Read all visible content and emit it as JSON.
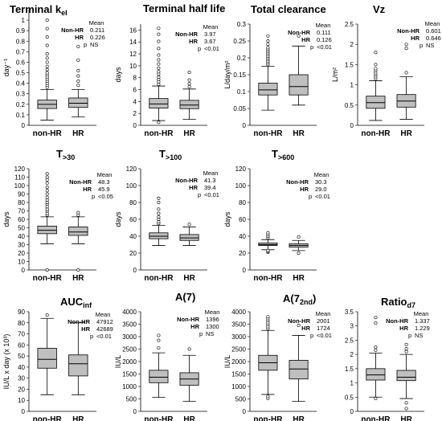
{
  "chart_data": [
    {
      "id": "p1",
      "type": "box",
      "title": "Terminal k",
      "title_sub": "el",
      "ylabel": "day⁻¹",
      "ylim": [
        0,
        1.1
      ],
      "yticks": [
        "0",
        "0.1",
        "0.2",
        "0.3",
        "0.4",
        "0.5",
        "0.6",
        "0.7",
        "0.8",
        "0.9",
        "1"
      ],
      "yvals": [
        0,
        0.1,
        0.2,
        0.3,
        0.4,
        0.5,
        0.6,
        0.7,
        0.8,
        0.9,
        1
      ],
      "categories": [
        "non-HR",
        "HR"
      ],
      "boxes": [
        {
          "min": 0.05,
          "q1": 0.16,
          "median": 0.2,
          "q3": 0.24,
          "max": 0.34,
          "outliers": [
            0.36,
            0.38,
            0.4,
            0.42,
            0.44,
            0.46,
            0.48,
            0.5,
            0.53,
            0.56,
            0.6,
            0.64,
            0.68,
            0.76,
            0.84,
            0.92,
            1.0
          ]
        },
        {
          "min": 0.08,
          "q1": 0.17,
          "median": 0.21,
          "q3": 0.26,
          "max": 0.34,
          "outliers": [
            0.38,
            0.42,
            0.47,
            0.52,
            0.62,
            0.75
          ]
        }
      ],
      "stats": {
        "header": "Mean",
        "rows": [
          {
            "label": "Non-HR",
            "value": "0.211"
          },
          {
            "label": "HR",
            "value": "0.226"
          },
          {
            "label": "p",
            "value": "NS"
          }
        ]
      }
    },
    {
      "id": "p2",
      "type": "box",
      "title": "Terminal half life",
      "title_sub": "",
      "ylabel": "days",
      "ylim": [
        0,
        17
      ],
      "yticks": [
        "0",
        "2",
        "4",
        "6",
        "8",
        "10",
        "12",
        "14",
        "16"
      ],
      "yvals": [
        0,
        2,
        4,
        6,
        8,
        10,
        12,
        14,
        16
      ],
      "categories": [
        "non-HR",
        "HR"
      ],
      "boxes": [
        {
          "min": 0.8,
          "q1": 2.9,
          "median": 3.6,
          "q3": 4.5,
          "max": 6.6,
          "outliers": [
            0.5,
            6.9,
            7.3,
            7.7,
            8.1,
            8.6,
            9.0,
            9.6,
            10.3,
            11.0,
            11.8,
            12.9,
            14.1,
            15.3,
            16.3
          ]
        },
        {
          "min": 1.0,
          "q1": 2.8,
          "median": 3.4,
          "q3": 4.2,
          "max": 6.1,
          "outliers": [
            6.5,
            7.0,
            7.6,
            8.9
          ]
        }
      ],
      "stats": {
        "header": "Mean",
        "rows": [
          {
            "label": "Non-HR",
            "value": "3.97"
          },
          {
            "label": "HR",
            "value": "3.67"
          },
          {
            "label": "p",
            "value": "<0.01"
          }
        ]
      }
    },
    {
      "id": "p3",
      "type": "box",
      "title": "Total clearance",
      "title_sub": "",
      "ylabel": "L/day/m²",
      "ylim": [
        0,
        0.3
      ],
      "yticks": [
        "0",
        "0.05",
        "0.1",
        "0.15",
        "0.2",
        "0.25",
        "0.3"
      ],
      "yvals": [
        0,
        0.05,
        0.1,
        0.15,
        0.2,
        0.25,
        0.3
      ],
      "categories": [
        "non-HR",
        "HR"
      ],
      "boxes": [
        {
          "min": 0.045,
          "q1": 0.09,
          "median": 0.105,
          "q3": 0.125,
          "max": 0.175,
          "outliers": [
            0.18,
            0.185,
            0.19,
            0.195,
            0.2,
            0.205,
            0.21,
            0.215,
            0.22,
            0.225,
            0.23,
            0.24,
            0.25,
            0.265
          ]
        },
        {
          "min": 0.06,
          "q1": 0.09,
          "median": 0.115,
          "q3": 0.15,
          "max": 0.235,
          "outliers": [
            0.265
          ]
        }
      ],
      "stats": {
        "header": "Mean",
        "rows": [
          {
            "label": "Non-HR",
            "value": "0.111"
          },
          {
            "label": "HR",
            "value": "0.126"
          },
          {
            "label": "p",
            "value": "<0.01"
          }
        ]
      }
    },
    {
      "id": "p4",
      "type": "box",
      "title": "Vz",
      "title_sub": "",
      "ylabel": "L/m²",
      "ylim": [
        0,
        2.5
      ],
      "yticks": [
        "0",
        "0.5",
        "1",
        "1.5",
        "2",
        "2.5"
      ],
      "yvals": [
        0,
        0.5,
        1,
        1.5,
        2,
        2.5
      ],
      "categories": [
        "non-HR",
        "HR"
      ],
      "boxes": [
        {
          "min": 0.12,
          "q1": 0.42,
          "median": 0.56,
          "q3": 0.72,
          "max": 1.1,
          "outliers": [
            1.15,
            1.2,
            1.25,
            1.3,
            1.35,
            1.4,
            1.5,
            1.8
          ]
        },
        {
          "min": 0.15,
          "q1": 0.45,
          "median": 0.6,
          "q3": 0.76,
          "max": 1.2,
          "outliers": [
            1.3,
            1.9,
            2.0
          ]
        }
      ],
      "stats": {
        "header": "Mean",
        "rows": [
          {
            "label": "Non-HR",
            "value": "0.601"
          },
          {
            "label": "HR",
            "value": "0.646"
          },
          {
            "label": "p",
            "value": "NS"
          }
        ]
      }
    },
    {
      "id": "p5",
      "type": "box",
      "title": "T",
      "title_sub": ">30",
      "ylabel": "days",
      "ylim": [
        0,
        120
      ],
      "yticks": [
        "0",
        "10",
        "20",
        "30",
        "40",
        "50",
        "60",
        "70",
        "80",
        "90",
        "100",
        "110",
        "120"
      ],
      "yvals": [
        0,
        10,
        20,
        30,
        40,
        50,
        60,
        70,
        80,
        90,
        100,
        110,
        120
      ],
      "categories": [
        "non-HR",
        "HR"
      ],
      "boxes": [
        {
          "min": 31,
          "q1": 43,
          "median": 47,
          "q3": 52,
          "max": 63,
          "outliers": [
            0,
            65,
            67,
            70,
            72,
            75,
            78,
            80,
            83,
            86,
            90,
            94,
            98,
            103,
            107,
            110,
            114
          ]
        },
        {
          "min": 31,
          "q1": 41,
          "median": 45,
          "q3": 51,
          "max": 63,
          "outliers": [
            0,
            65,
            68
          ]
        }
      ],
      "stats": {
        "header": "Mean",
        "rows": [
          {
            "label": "Non-HR",
            "value": "48.3"
          },
          {
            "label": "HR",
            "value": "45.9"
          },
          {
            "label": "p",
            "value": "<0.05"
          }
        ]
      }
    },
    {
      "id": "p6",
      "type": "box",
      "title": "T",
      "title_sub": ">100",
      "ylabel": "days",
      "ylim": [
        0,
        120
      ],
      "yticks": [
        "0",
        "20",
        "40",
        "60",
        "80",
        "100",
        "120"
      ],
      "yvals": [
        0,
        20,
        40,
        60,
        80,
        100,
        120
      ],
      "categories": [
        "non-HR",
        "HR"
      ],
      "boxes": [
        {
          "min": 29,
          "q1": 37,
          "median": 40,
          "q3": 44,
          "max": 53,
          "outliers": [
            55,
            57,
            60,
            63,
            67,
            72,
            80,
            85
          ]
        },
        {
          "min": 29,
          "q1": 35,
          "median": 38,
          "q3": 42,
          "max": 51,
          "outliers": [
            54
          ]
        }
      ],
      "stats": {
        "header": "Mean",
        "rows": [
          {
            "label": "Non-HR",
            "value": "41.3"
          },
          {
            "label": "HR",
            "value": "39.4"
          },
          {
            "label": "p",
            "value": "<0.01"
          }
        ]
      }
    },
    {
      "id": "p7",
      "type": "box",
      "title": "T",
      "title_sub": ">600",
      "ylabel": "days",
      "ylim": [
        0,
        120
      ],
      "yticks": [
        "0",
        "20",
        "40",
        "60",
        "80",
        "100",
        "120"
      ],
      "yvals": [
        0,
        20,
        40,
        60,
        80,
        100,
        120
      ],
      "categories": [
        "non-HR",
        "HR"
      ],
      "boxes": [
        {
          "min": 24,
          "q1": 29,
          "median": 30,
          "q3": 32,
          "max": 36,
          "outliers": [
            21,
            22,
            23,
            38,
            40,
            42,
            44
          ]
        },
        {
          "min": 23,
          "q1": 27,
          "median": 29,
          "q3": 31,
          "max": 35,
          "outliers": [
            20,
            39
          ]
        }
      ],
      "stats": {
        "header": "Mean",
        "rows": [
          {
            "label": "Non-HR",
            "value": "30.3"
          },
          {
            "label": "HR",
            "value": "29.0"
          },
          {
            "label": "p",
            "value": "<0.01"
          }
        ]
      }
    },
    {
      "id": "p8",
      "type": "box",
      "title": "AUC",
      "title_sub": "inf",
      "ylabel": "IU/L x day (x 10³)",
      "ylim": [
        0,
        90
      ],
      "yticks": [
        "0",
        "10",
        "20",
        "30",
        "40",
        "50",
        "60",
        "70",
        "80",
        "90"
      ],
      "yvals": [
        0,
        10,
        20,
        30,
        40,
        50,
        60,
        70,
        80,
        90
      ],
      "categories": [
        "non-HR",
        "HR"
      ],
      "boxes": [
        {
          "min": 15,
          "q1": 39,
          "median": 47,
          "q3": 57,
          "max": 84,
          "outliers": [
            87
          ]
        },
        {
          "min": 15,
          "q1": 32,
          "median": 43,
          "q3": 51,
          "max": 80,
          "outliers": []
        }
      ],
      "stats": {
        "header": "Mean",
        "rows": [
          {
            "label": "Non-HR",
            "value": "47912"
          },
          {
            "label": "HR",
            "value": "42689"
          },
          {
            "label": "p",
            "value": "<0.01"
          }
        ]
      }
    },
    {
      "id": "p9",
      "type": "box",
      "title": "A(7)",
      "title_sub": "",
      "ylabel": "IU/L",
      "ylim": [
        0,
        4000
      ],
      "yticks": [
        "0",
        "500",
        "1000",
        "1500",
        "2000",
        "2500",
        "3000",
        "3500",
        "4000"
      ],
      "yvals": [
        0,
        500,
        1000,
        1500,
        2000,
        2500,
        3000,
        3500,
        4000
      ],
      "categories": [
        "non-HR",
        "HR"
      ],
      "boxes": [
        {
          "min": 560,
          "q1": 1150,
          "median": 1370,
          "q3": 1650,
          "max": 2350,
          "outliers": [
            2550,
            2850,
            3050
          ]
        },
        {
          "min": 400,
          "q1": 1050,
          "median": 1300,
          "q3": 1550,
          "max": 2250,
          "outliers": [
            2500
          ]
        }
      ],
      "stats": {
        "header": "Mean",
        "rows": [
          {
            "label": "Non-HR",
            "value": "1396"
          },
          {
            "label": "HR",
            "value": "1300"
          },
          {
            "label": "p",
            "value": "NS"
          }
        ]
      }
    },
    {
      "id": "p10",
      "type": "box",
      "title": "A(7",
      "title_sub": "2nd",
      "title_after": ")",
      "ylabel": "IU/L",
      "ylim": [
        0,
        4000
      ],
      "yticks": [
        "0",
        "500",
        "1000",
        "1500",
        "2000",
        "2500",
        "3000",
        "3500",
        "4000"
      ],
      "yvals": [
        0,
        500,
        1000,
        1500,
        2000,
        2500,
        3000,
        3500,
        4000
      ],
      "categories": [
        "non-HR",
        "HR"
      ],
      "boxes": [
        {
          "min": 680,
          "q1": 1650,
          "median": 1950,
          "q3": 2250,
          "max": 3250,
          "outliers": [
            520,
            600,
            3320,
            3400,
            3480,
            3560,
            3640,
            3720,
            3800
          ]
        },
        {
          "min": 400,
          "q1": 1300,
          "median": 1700,
          "q3": 2050,
          "max": 3050,
          "outliers": [
            3450
          ]
        }
      ],
      "stats": {
        "header": "Mean",
        "rows": [
          {
            "label": "Non-HR",
            "value": "2001"
          },
          {
            "label": "HR",
            "value": "1724"
          },
          {
            "label": "p",
            "value": "<0.01"
          }
        ]
      }
    },
    {
      "id": "p11",
      "type": "box",
      "title": "Ratio",
      "title_sub": "d7",
      "ylabel": "",
      "ylim": [
        0,
        3.5
      ],
      "yticks": [
        "0",
        "0.5",
        "1",
        "1.5",
        "2",
        "2.5",
        "3",
        "3.5"
      ],
      "yvals": [
        0,
        0.5,
        1,
        1.5,
        2,
        2.5,
        3,
        3.5
      ],
      "categories": [
        "non-HR",
        "HR"
      ],
      "boxes": [
        {
          "min": 0.5,
          "q1": 1.1,
          "median": 1.28,
          "q3": 1.5,
          "max": 2.05,
          "outliers": [
            0.45,
            2.15,
            2.25,
            3.1,
            3.3
          ]
        },
        {
          "min": 0.45,
          "q1": 1.08,
          "median": 1.2,
          "q3": 1.44,
          "max": 2.0,
          "outliers": [
            0.1,
            0.3,
            2.1,
            2.2,
            2.35
          ]
        }
      ],
      "stats": {
        "header": "Mean",
        "rows": [
          {
            "label": "Non-HR",
            "value": "1.337"
          },
          {
            "label": "HR",
            "value": "1.229"
          },
          {
            "label": "p",
            "value": "NS"
          }
        ]
      }
    }
  ]
}
